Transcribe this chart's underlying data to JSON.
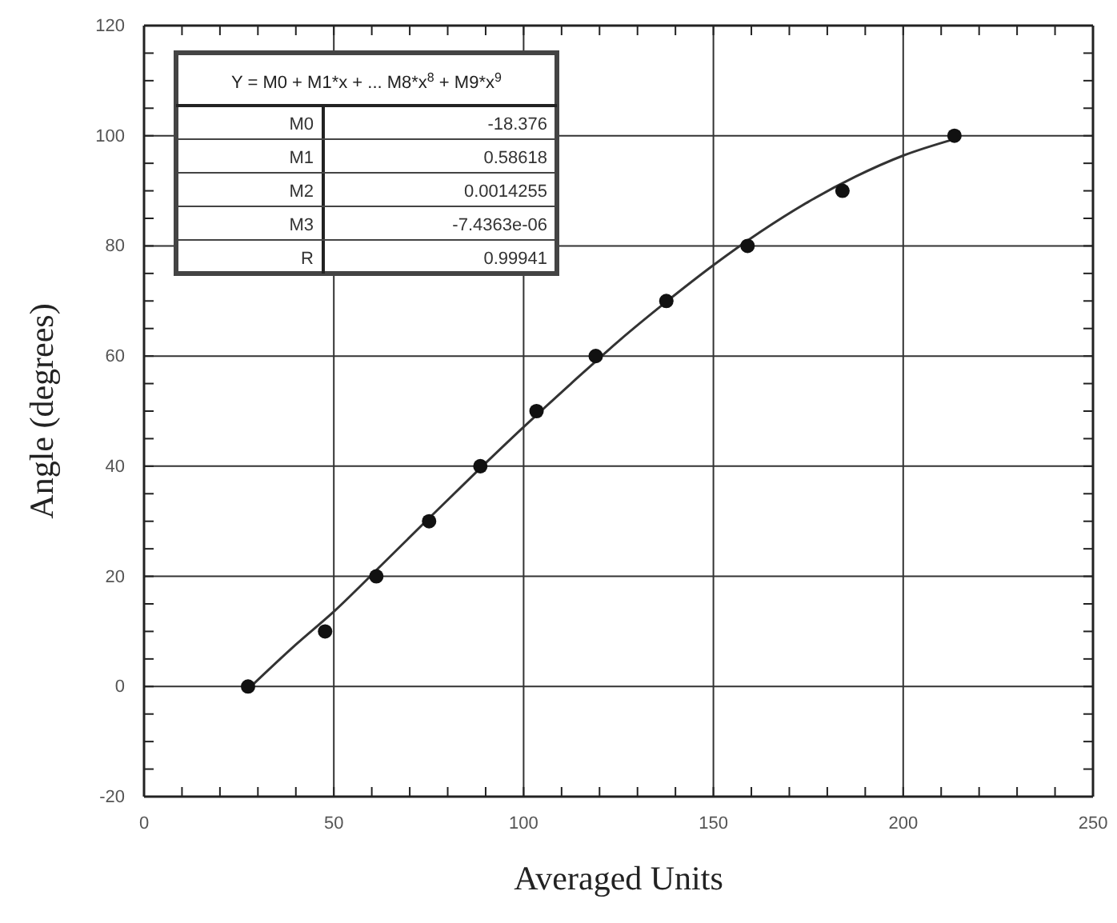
{
  "chart_data": {
    "type": "scatter",
    "xlabel": "Averaged Units",
    "ylabel": "Angle (degrees)",
    "xlim": [
      0,
      250
    ],
    "ylim": [
      -20,
      120
    ],
    "xticks": [
      0,
      {
        "value": 10,
        "label": null
      },
      {
        "value": 20,
        "label": null
      },
      {
        "value": 30,
        "label": null
      },
      {
        "value": 40,
        "label": null
      },
      50,
      {
        "value": 60,
        "label": null
      },
      {
        "value": 70,
        "label": null
      },
      {
        "value": 80,
        "label": null
      },
      {
        "value": 90,
        "label": null
      },
      100,
      {
        "value": 110,
        "label": null
      },
      {
        "value": 120,
        "label": null
      },
      {
        "value": 130,
        "label": null
      },
      {
        "value": 140,
        "label": null
      },
      150,
      {
        "value": 160,
        "label": null
      },
      {
        "value": 170,
        "label": null
      },
      {
        "value": 180,
        "label": null
      },
      {
        "value": 190,
        "label": null
      },
      200,
      {
        "value": 210,
        "label": null
      },
      {
        "value": 220,
        "label": null
      },
      {
        "value": 230,
        "label": null
      },
      {
        "value": 240,
        "label": null
      },
      250
    ],
    "yticks": [
      -20,
      {
        "value": -15,
        "label": null
      },
      {
        "value": -10,
        "label": null
      },
      {
        "value": -5,
        "label": null
      },
      0,
      {
        "value": 5,
        "label": null
      },
      {
        "value": 10,
        "label": null
      },
      {
        "value": 15,
        "label": null
      },
      20,
      {
        "value": 25,
        "label": null
      },
      {
        "value": 30,
        "label": null
      },
      {
        "value": 35,
        "label": null
      },
      40,
      {
        "value": 45,
        "label": null
      },
      {
        "value": 50,
        "label": null
      },
      {
        "value": 55,
        "label": null
      },
      60,
      {
        "value": 65,
        "label": null
      },
      {
        "value": 70,
        "label": null
      },
      {
        "value": 75,
        "label": null
      },
      80,
      {
        "value": 85,
        "label": null
      },
      {
        "value": 90,
        "label": null
      },
      {
        "value": 95,
        "label": null
      },
      100,
      {
        "value": 105,
        "label": null
      },
      {
        "value": 110,
        "label": null
      },
      {
        "value": 115,
        "label": null
      },
      120
    ],
    "grid": true,
    "series": [
      {
        "marker": "circle",
        "color": "#111111",
        "x": [
          27.4,
          47.7,
          61.2,
          75.1,
          88.6,
          103.4,
          119,
          137.6,
          159,
          184,
          213.5
        ],
        "values": [
          0,
          10,
          20,
          30,
          40,
          50,
          60,
          70,
          80,
          90,
          100
        ]
      },
      {
        "type": "line",
        "color": "#333333",
        "x": [
          27.4,
          40,
          50,
          62.5,
          75,
          87.5,
          100,
          112.5,
          125,
          137.5,
          150,
          162.5,
          175,
          187.5,
          200,
          213.5
        ],
        "values": [
          -0.5,
          7.6,
          13.6,
          22.0,
          30.5,
          38.9,
          47.1,
          55.0,
          62.7,
          69.8,
          76.5,
          82.6,
          88.0,
          92.6,
          96.4,
          99.4
        ]
      }
    ],
    "annotations": [
      "Y = M0 + M1*x + ... M8*x$^{8}$ + M9*x$^{9}$",
      "M0",
      "-18.376",
      "M1",
      "0.58618",
      "M2",
      "0.0014255",
      "M3",
      "-7.4363e-06",
      "R",
      "0.99941"
    ]
  }
}
